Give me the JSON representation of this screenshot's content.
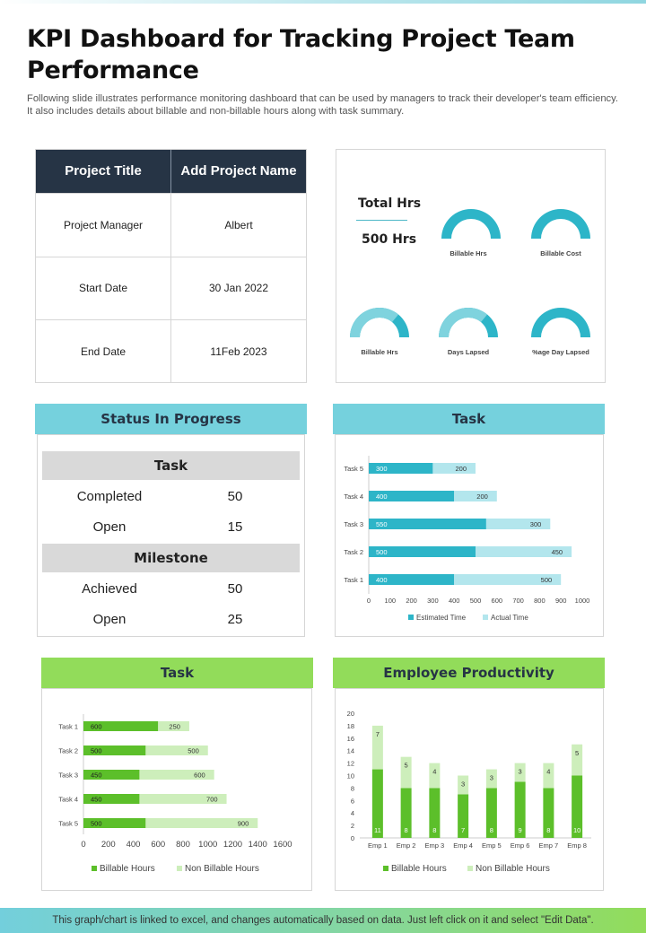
{
  "title": "KPI Dashboard for Tracking Project Team Performance",
  "subtitle": "Following slide illustrates performance monitoring dashboard that can be used by managers to track their developer's team efficiency. It also includes details about billable and non-billable hours along with task summary.",
  "project_table": {
    "header": [
      "Project Title",
      "Add Project Name"
    ],
    "rows": [
      {
        "label": "Project Manager",
        "value": "Albert"
      },
      {
        "label": "Start Date",
        "value": "30 Jan 2022"
      },
      {
        "label": "End Date",
        "value": "11Feb 2023"
      }
    ]
  },
  "gauges_panel": {
    "total_label": "Total Hrs",
    "total_value": "500 Hrs",
    "gauge_color": "#2db5c8",
    "gauge_light": "#7fd3de",
    "gauges": [
      {
        "label": "Billable Hrs"
      },
      {
        "label": "Billable Cost"
      },
      {
        "label": "Billable Hrs"
      },
      {
        "label": "Days Lapsed"
      },
      {
        "label": "%age Day Lapsed"
      }
    ]
  },
  "status": {
    "header": "Status  In Progress",
    "task_title": "Task",
    "completed_label": "Completed",
    "completed_value": "50",
    "open_label": "Open",
    "open_value": "15",
    "milestone_title": "Milestone",
    "achieved_label": "Achieved",
    "achieved_value": "50",
    "open2_label": "Open",
    "open2_value": "25"
  },
  "task_time": {
    "header": "Task",
    "colors": {
      "estimated": "#2db5c8",
      "actual": "#b3e6ed"
    },
    "chart_data": {
      "type": "bar",
      "orientation": "horizontal",
      "stacked": true,
      "categories": [
        "Task 5",
        "Task 4",
        "Task 3",
        "Task 2",
        "Task 1"
      ],
      "series": [
        {
          "name": "Estimated Time",
          "values": [
            300,
            400,
            550,
            500,
            400
          ]
        },
        {
          "name": "Actual Time",
          "values": [
            200,
            200,
            300,
            450,
            500
          ]
        }
      ],
      "xlim": [
        0,
        1000
      ],
      "xticks": [
        "0",
        "100",
        "200",
        "300",
        "400",
        "500",
        "600",
        "700",
        "800",
        "900",
        "1000"
      ],
      "legend": "bottom"
    }
  },
  "task_hours": {
    "header": "Task",
    "colors": {
      "billable": "#5cbf2a",
      "non_billable": "#cdeebb"
    },
    "chart_data": {
      "type": "bar",
      "orientation": "horizontal",
      "stacked": true,
      "categories": [
        "Task 1",
        "Task 2",
        "Task 3",
        "Task 4",
        "Task 5"
      ],
      "series": [
        {
          "name": "Billable Hours",
          "values": [
            600,
            500,
            450,
            450,
            500
          ]
        },
        {
          "name": "Non Billable Hours",
          "values": [
            250,
            500,
            600,
            700,
            900
          ]
        }
      ],
      "xlim": [
        0,
        1600
      ],
      "xticks": [
        "0",
        "200",
        "400",
        "600",
        "800",
        "1000",
        "1200",
        "1400",
        "1600"
      ],
      "legend": "bottom"
    }
  },
  "productivity": {
    "header": "Employee Productivity",
    "colors": {
      "billable": "#5cbf2a",
      "non_billable": "#cdeebb"
    },
    "chart_data": {
      "type": "bar",
      "orientation": "vertical",
      "stacked": true,
      "categories": [
        "Emp 1",
        "Emp 2",
        "Emp 3",
        "Emp 4",
        "Emp 5",
        "Emp 6",
        "Emp 7",
        "Emp 8"
      ],
      "series": [
        {
          "name": "Billable Hours",
          "values": [
            11,
            8,
            8,
            7,
            8,
            9,
            8,
            10
          ]
        },
        {
          "name": "Non Billable Hours",
          "values": [
            7,
            5,
            4,
            3,
            3,
            3,
            4,
            5
          ]
        }
      ],
      "ylim": [
        0,
        20
      ],
      "yticks": [
        "0",
        "2",
        "4",
        "6",
        "8",
        "10",
        "12",
        "14",
        "16",
        "18",
        "20"
      ],
      "legend": "bottom"
    }
  },
  "footer": "This graph/chart is linked to excel, and changes automatically based on data. Just left click on it and select \"Edit Data\"."
}
